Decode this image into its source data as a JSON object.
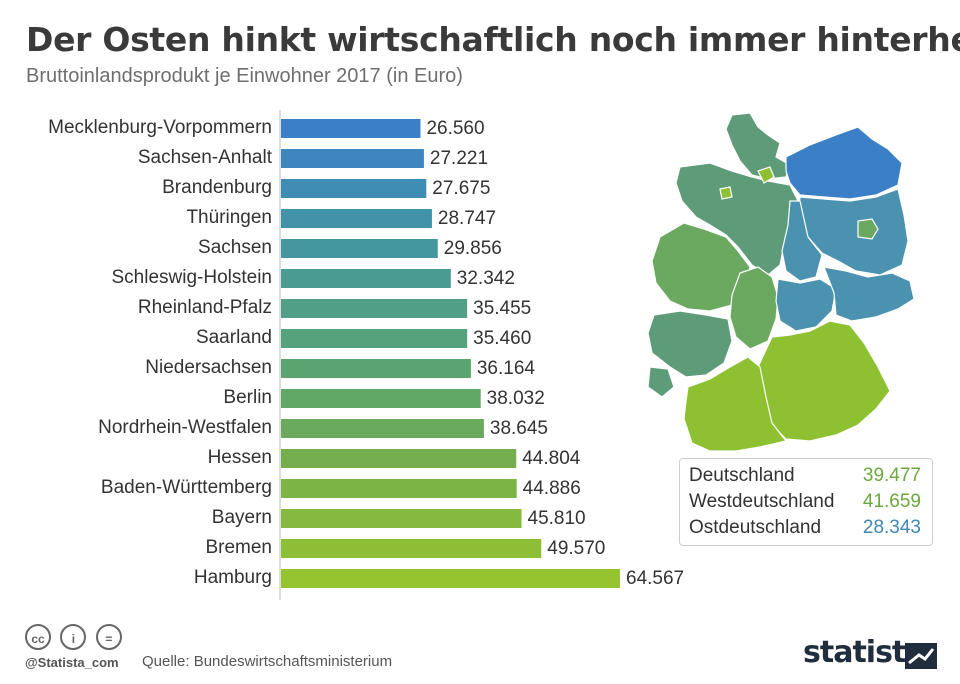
{
  "title": "Der Osten hinkt wirtschaftlich noch immer hinterher",
  "subtitle": "Bruttoinlandsprodukt je Einwohner 2017 (in Euro)",
  "chart_data": {
    "type": "bar",
    "orientation": "horizontal",
    "categories": [
      "Mecklenburg-Vorpommern",
      "Sachsen-Anhalt",
      "Brandenburg",
      "Thüringen",
      "Sachsen",
      "Schleswig-Holstein",
      "Rheinland-Pfalz",
      "Saarland",
      "Niedersachsen",
      "Berlin",
      "Nordrhein-Westfalen",
      "Hessen",
      "Baden-Württemberg",
      "Bayern",
      "Bremen",
      "Hamburg"
    ],
    "values": [
      26560,
      27221,
      27675,
      28747,
      29856,
      32342,
      35455,
      35460,
      36164,
      38032,
      38645,
      44804,
      44886,
      45810,
      49570,
      64567
    ],
    "value_labels": [
      "26.560",
      "27.221",
      "27.675",
      "28.747",
      "29.856",
      "32.342",
      "35.455",
      "35.460",
      "36.164",
      "38.032",
      "38.645",
      "44.804",
      "44.886",
      "45.810",
      "49.570",
      "64.567"
    ],
    "colors": [
      "#3b7fc6",
      "#3d86be",
      "#3f8cb4",
      "#4292a9",
      "#45979e",
      "#4a9b92",
      "#519f86",
      "#56a27d",
      "#5aa471",
      "#61a766",
      "#69aa5c",
      "#75ae4e",
      "#7db446",
      "#85b93f",
      "#8dbf36",
      "#95c42e"
    ],
    "xlim": [
      0,
      64567
    ]
  },
  "legend": {
    "rows": [
      {
        "label": "Deutschland",
        "value": "39.477",
        "color": "#7ab648"
      },
      {
        "label": "Westdeutschland",
        "value": "41.659",
        "color": "#7ab648"
      },
      {
        "label": "Ostdeutschland",
        "value": "28.343",
        "color": "#3f8cb4"
      }
    ]
  },
  "map_colors": {
    "east": "#3b7fc6",
    "east_teal": "#4a92b0",
    "north": "#5e9c79",
    "west": "#6aa95f",
    "south": "#8ec132",
    "border": "#ffffff"
  },
  "footer": {
    "handle": "@Statista_com",
    "source": "Quelle: Bundeswirtschaftsministerium",
    "brand": "statista",
    "icons": [
      "cc-icon",
      "by-icon",
      "nd-icon"
    ],
    "icon_glyphs": [
      "cc",
      "i",
      "="
    ]
  }
}
